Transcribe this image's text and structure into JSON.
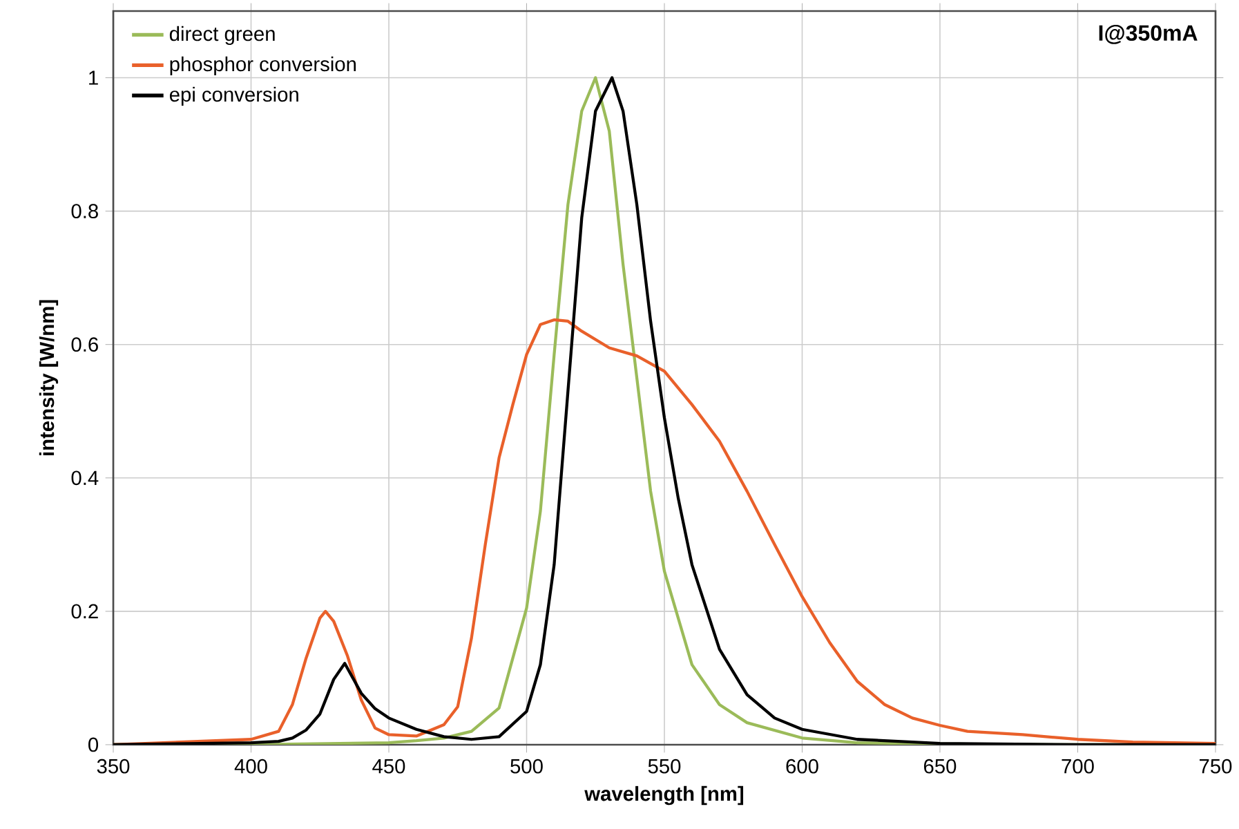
{
  "chart_data": {
    "type": "line",
    "xlabel": "wavelength [nm]",
    "ylabel": "intensity [W/nm]",
    "annotations": [
      "I@350mA"
    ],
    "xlim": [
      350,
      750
    ],
    "ylim": [
      0,
      1.1
    ],
    "xticks": [
      350,
      400,
      450,
      500,
      550,
      600,
      650,
      700,
      750
    ],
    "yticks": [
      0,
      0.2,
      0.4,
      0.6,
      0.8,
      1
    ],
    "grid": true,
    "legend": "top left",
    "series": [
      {
        "name": "direct green",
        "color": "#9bbb59",
        "x": [
          350,
          400,
          450,
          460,
          470,
          480,
          490,
          500,
          505,
          510,
          515,
          520,
          525,
          530,
          535,
          540,
          545,
          550,
          560,
          570,
          580,
          600,
          620,
          650,
          700,
          750
        ],
        "values": [
          0,
          0,
          0.003,
          0.006,
          0.01,
          0.02,
          0.055,
          0.205,
          0.35,
          0.585,
          0.81,
          0.95,
          1.0,
          0.92,
          0.72,
          0.55,
          0.38,
          0.26,
          0.12,
          0.06,
          0.033,
          0.01,
          0.003,
          0.001,
          0,
          0
        ]
      },
      {
        "name": "phosphor conversion",
        "color": "#e9602a",
        "x": [
          350,
          400,
          410,
          415,
          420,
          425,
          427,
          430,
          435,
          440,
          445,
          450,
          460,
          470,
          475,
          480,
          485,
          490,
          495,
          500,
          505,
          510,
          515,
          520,
          530,
          540,
          550,
          560,
          570,
          580,
          590,
          600,
          610,
          620,
          630,
          640,
          650,
          660,
          680,
          700,
          720,
          750
        ],
        "values": [
          0,
          0.008,
          0.02,
          0.06,
          0.13,
          0.19,
          0.2,
          0.185,
          0.133,
          0.067,
          0.025,
          0.015,
          0.013,
          0.03,
          0.057,
          0.16,
          0.3,
          0.43,
          0.51,
          0.585,
          0.63,
          0.637,
          0.635,
          0.62,
          0.595,
          0.583,
          0.56,
          0.51,
          0.455,
          0.38,
          0.3,
          0.222,
          0.153,
          0.095,
          0.06,
          0.04,
          0.029,
          0.02,
          0.015,
          0.008,
          0.004,
          0.002
        ]
      },
      {
        "name": "epi conversion",
        "color": "#000000",
        "x": [
          350,
          400,
          410,
          415,
          420,
          425,
          430,
          434,
          440,
          445,
          450,
          460,
          470,
          480,
          490,
          500,
          505,
          510,
          515,
          520,
          525,
          531,
          535,
          540,
          545,
          550,
          555,
          560,
          570,
          580,
          590,
          600,
          620,
          650,
          700,
          750
        ],
        "values": [
          0,
          0.003,
          0.005,
          0.01,
          0.022,
          0.046,
          0.098,
          0.122,
          0.077,
          0.054,
          0.04,
          0.023,
          0.012,
          0.008,
          0.012,
          0.05,
          0.12,
          0.27,
          0.53,
          0.79,
          0.95,
          1.0,
          0.95,
          0.81,
          0.635,
          0.49,
          0.37,
          0.27,
          0.143,
          0.075,
          0.04,
          0.023,
          0.008,
          0.002,
          0,
          0
        ]
      }
    ]
  }
}
